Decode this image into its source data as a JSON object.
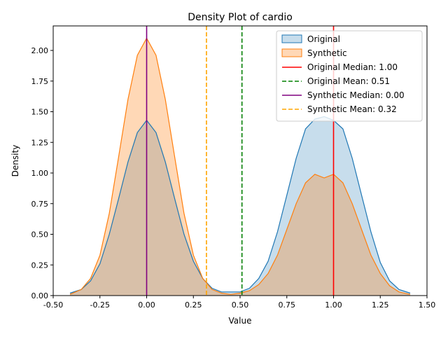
{
  "chart_data": {
    "type": "area",
    "title": "Density Plot of cardio",
    "xlabel": "Value",
    "ylabel": "Density",
    "xlim": [
      -0.5,
      1.5
    ],
    "ylim": [
      0,
      2.2
    ],
    "x_ticks": [
      "-0.50",
      "-0.25",
      "0.00",
      "0.25",
      "0.50",
      "0.75",
      "1.00",
      "1.25",
      "1.50"
    ],
    "y_ticks": [
      "0.00",
      "0.25",
      "0.50",
      "0.75",
      "1.00",
      "1.25",
      "1.50",
      "1.75",
      "2.00"
    ],
    "grid": false,
    "legend_position": "top-right",
    "series": [
      {
        "name": "Original",
        "color": "#1f77b4",
        "fill_opacity": 0.25,
        "x": [
          -0.41,
          -0.35,
          -0.3,
          -0.25,
          -0.2,
          -0.15,
          -0.1,
          -0.05,
          0.0,
          0.05,
          0.1,
          0.15,
          0.2,
          0.25,
          0.3,
          0.35,
          0.4,
          0.45,
          0.5,
          0.55,
          0.6,
          0.65,
          0.7,
          0.75,
          0.8,
          0.85,
          0.9,
          0.95,
          1.0,
          1.05,
          1.1,
          1.15,
          1.2,
          1.25,
          1.3,
          1.35,
          1.41
        ],
        "y": [
          0.02,
          0.05,
          0.12,
          0.26,
          0.5,
          0.79,
          1.09,
          1.33,
          1.43,
          1.33,
          1.09,
          0.79,
          0.5,
          0.28,
          0.14,
          0.06,
          0.03,
          0.03,
          0.03,
          0.06,
          0.14,
          0.28,
          0.52,
          0.82,
          1.12,
          1.36,
          1.44,
          1.46,
          1.43,
          1.36,
          1.12,
          0.82,
          0.52,
          0.27,
          0.12,
          0.05,
          0.02
        ]
      },
      {
        "name": "Synthetic",
        "color": "#ff7f0e",
        "fill_opacity": 0.3,
        "x": [
          -0.41,
          -0.35,
          -0.3,
          -0.25,
          -0.2,
          -0.15,
          -0.1,
          -0.05,
          0.0,
          0.05,
          0.1,
          0.15,
          0.2,
          0.25,
          0.3,
          0.35,
          0.4,
          0.45,
          0.5,
          0.55,
          0.6,
          0.65,
          0.7,
          0.75,
          0.8,
          0.85,
          0.9,
          0.95,
          1.0,
          1.05,
          1.1,
          1.15,
          1.2,
          1.25,
          1.3,
          1.35,
          1.41
        ],
        "y": [
          0.01,
          0.05,
          0.14,
          0.33,
          0.67,
          1.13,
          1.6,
          1.96,
          2.1,
          1.96,
          1.6,
          1.13,
          0.67,
          0.33,
          0.14,
          0.05,
          0.02,
          0.01,
          0.02,
          0.04,
          0.09,
          0.18,
          0.33,
          0.54,
          0.75,
          0.92,
          0.99,
          0.96,
          0.99,
          0.92,
          0.75,
          0.54,
          0.33,
          0.18,
          0.08,
          0.03,
          0.01
        ]
      }
    ],
    "reference_lines": [
      {
        "label": "Original Median: 1.00",
        "x": 1.0,
        "color": "#ff0000",
        "style": "solid"
      },
      {
        "label": "Original Mean: 0.51",
        "x": 0.51,
        "color": "#008000",
        "style": "dashed"
      },
      {
        "label": "Synthetic Median: 0.00",
        "x": 0.0,
        "color": "#800080",
        "style": "solid"
      },
      {
        "label": "Synthetic Mean: 0.32",
        "x": 0.32,
        "color": "#ffa500",
        "style": "dashed"
      }
    ]
  }
}
